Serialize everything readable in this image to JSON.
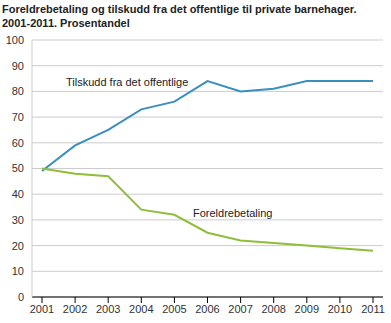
{
  "chart_data": {
    "type": "line",
    "title": "Foreldrebetaling og tilskudd fra det offentlige til private barnehager.",
    "subtitle": "2001-2011. Prosentandel",
    "x": [
      2001,
      2002,
      2003,
      2004,
      2005,
      2006,
      2007,
      2008,
      2009,
      2010,
      2011
    ],
    "series": [
      {
        "name": "Tilskudd fra det offentlige",
        "color": "#3a8ec0",
        "values": [
          49,
          59,
          65,
          73,
          76,
          84,
          80,
          81,
          84,
          84,
          84
        ]
      },
      {
        "name": "Foreldrebetaling",
        "color": "#8fbe3a",
        "values": [
          50,
          48,
          47,
          34,
          32,
          25,
          22,
          21,
          20,
          19,
          18
        ]
      }
    ],
    "ylim": [
      0,
      100
    ],
    "yticks": [
      0,
      10,
      20,
      30,
      40,
      50,
      60,
      70,
      80,
      90,
      100
    ],
    "grid": true
  }
}
